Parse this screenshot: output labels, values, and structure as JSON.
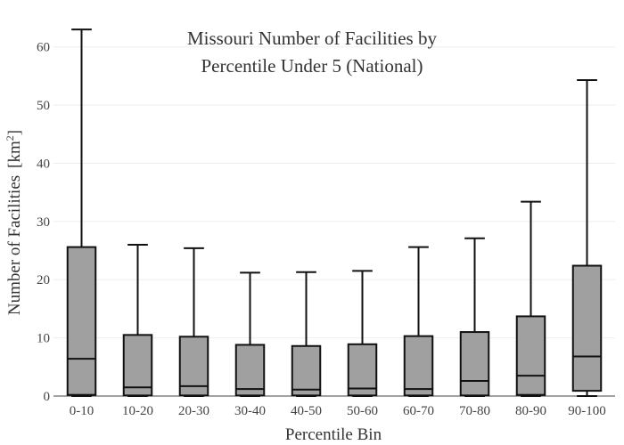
{
  "chart_data": {
    "type": "box",
    "title_lines": [
      "Missouri Number of Facilities by",
      "Percentile Under 5 (National)"
    ],
    "xlabel": "Percentile Bin",
    "ylabel": "Number of Facilities",
    "ylabel_unit_prefix": "[km",
    "ylabel_unit_sup": "2",
    "ylabel_unit_suffix": "]",
    "ylim": [
      0,
      65
    ],
    "yticks": [
      0,
      10,
      20,
      30,
      40,
      50,
      60
    ],
    "grid": true,
    "box_color": "#a0a0a0",
    "categories": [
      "0-10",
      "10-20",
      "20-30",
      "30-40",
      "40-50",
      "50-60",
      "60-70",
      "70-80",
      "80-90",
      "90-100"
    ],
    "series": [
      {
        "boxes": [
          {
            "min": 0,
            "q1": 0.2,
            "median": 6.4,
            "q3": 25.6,
            "max": 63.0
          },
          {
            "min": 0,
            "q1": 0.1,
            "median": 1.5,
            "q3": 10.5,
            "max": 26.0
          },
          {
            "min": 0,
            "q1": 0.1,
            "median": 1.7,
            "q3": 10.2,
            "max": 25.4
          },
          {
            "min": 0,
            "q1": 0.1,
            "median": 1.2,
            "q3": 8.8,
            "max": 21.2
          },
          {
            "min": 0,
            "q1": 0.1,
            "median": 1.1,
            "q3": 8.6,
            "max": 21.3
          },
          {
            "min": 0,
            "q1": 0.1,
            "median": 1.3,
            "q3": 8.9,
            "max": 21.5
          },
          {
            "min": 0,
            "q1": 0.1,
            "median": 1.2,
            "q3": 10.3,
            "max": 25.6
          },
          {
            "min": 0,
            "q1": 0.1,
            "median": 2.6,
            "q3": 11.0,
            "max": 27.1
          },
          {
            "min": 0,
            "q1": 0.2,
            "median": 3.5,
            "q3": 13.7,
            "max": 33.4
          },
          {
            "min": 0,
            "q1": 0.9,
            "median": 6.8,
            "q3": 22.4,
            "max": 54.3
          }
        ]
      }
    ]
  }
}
